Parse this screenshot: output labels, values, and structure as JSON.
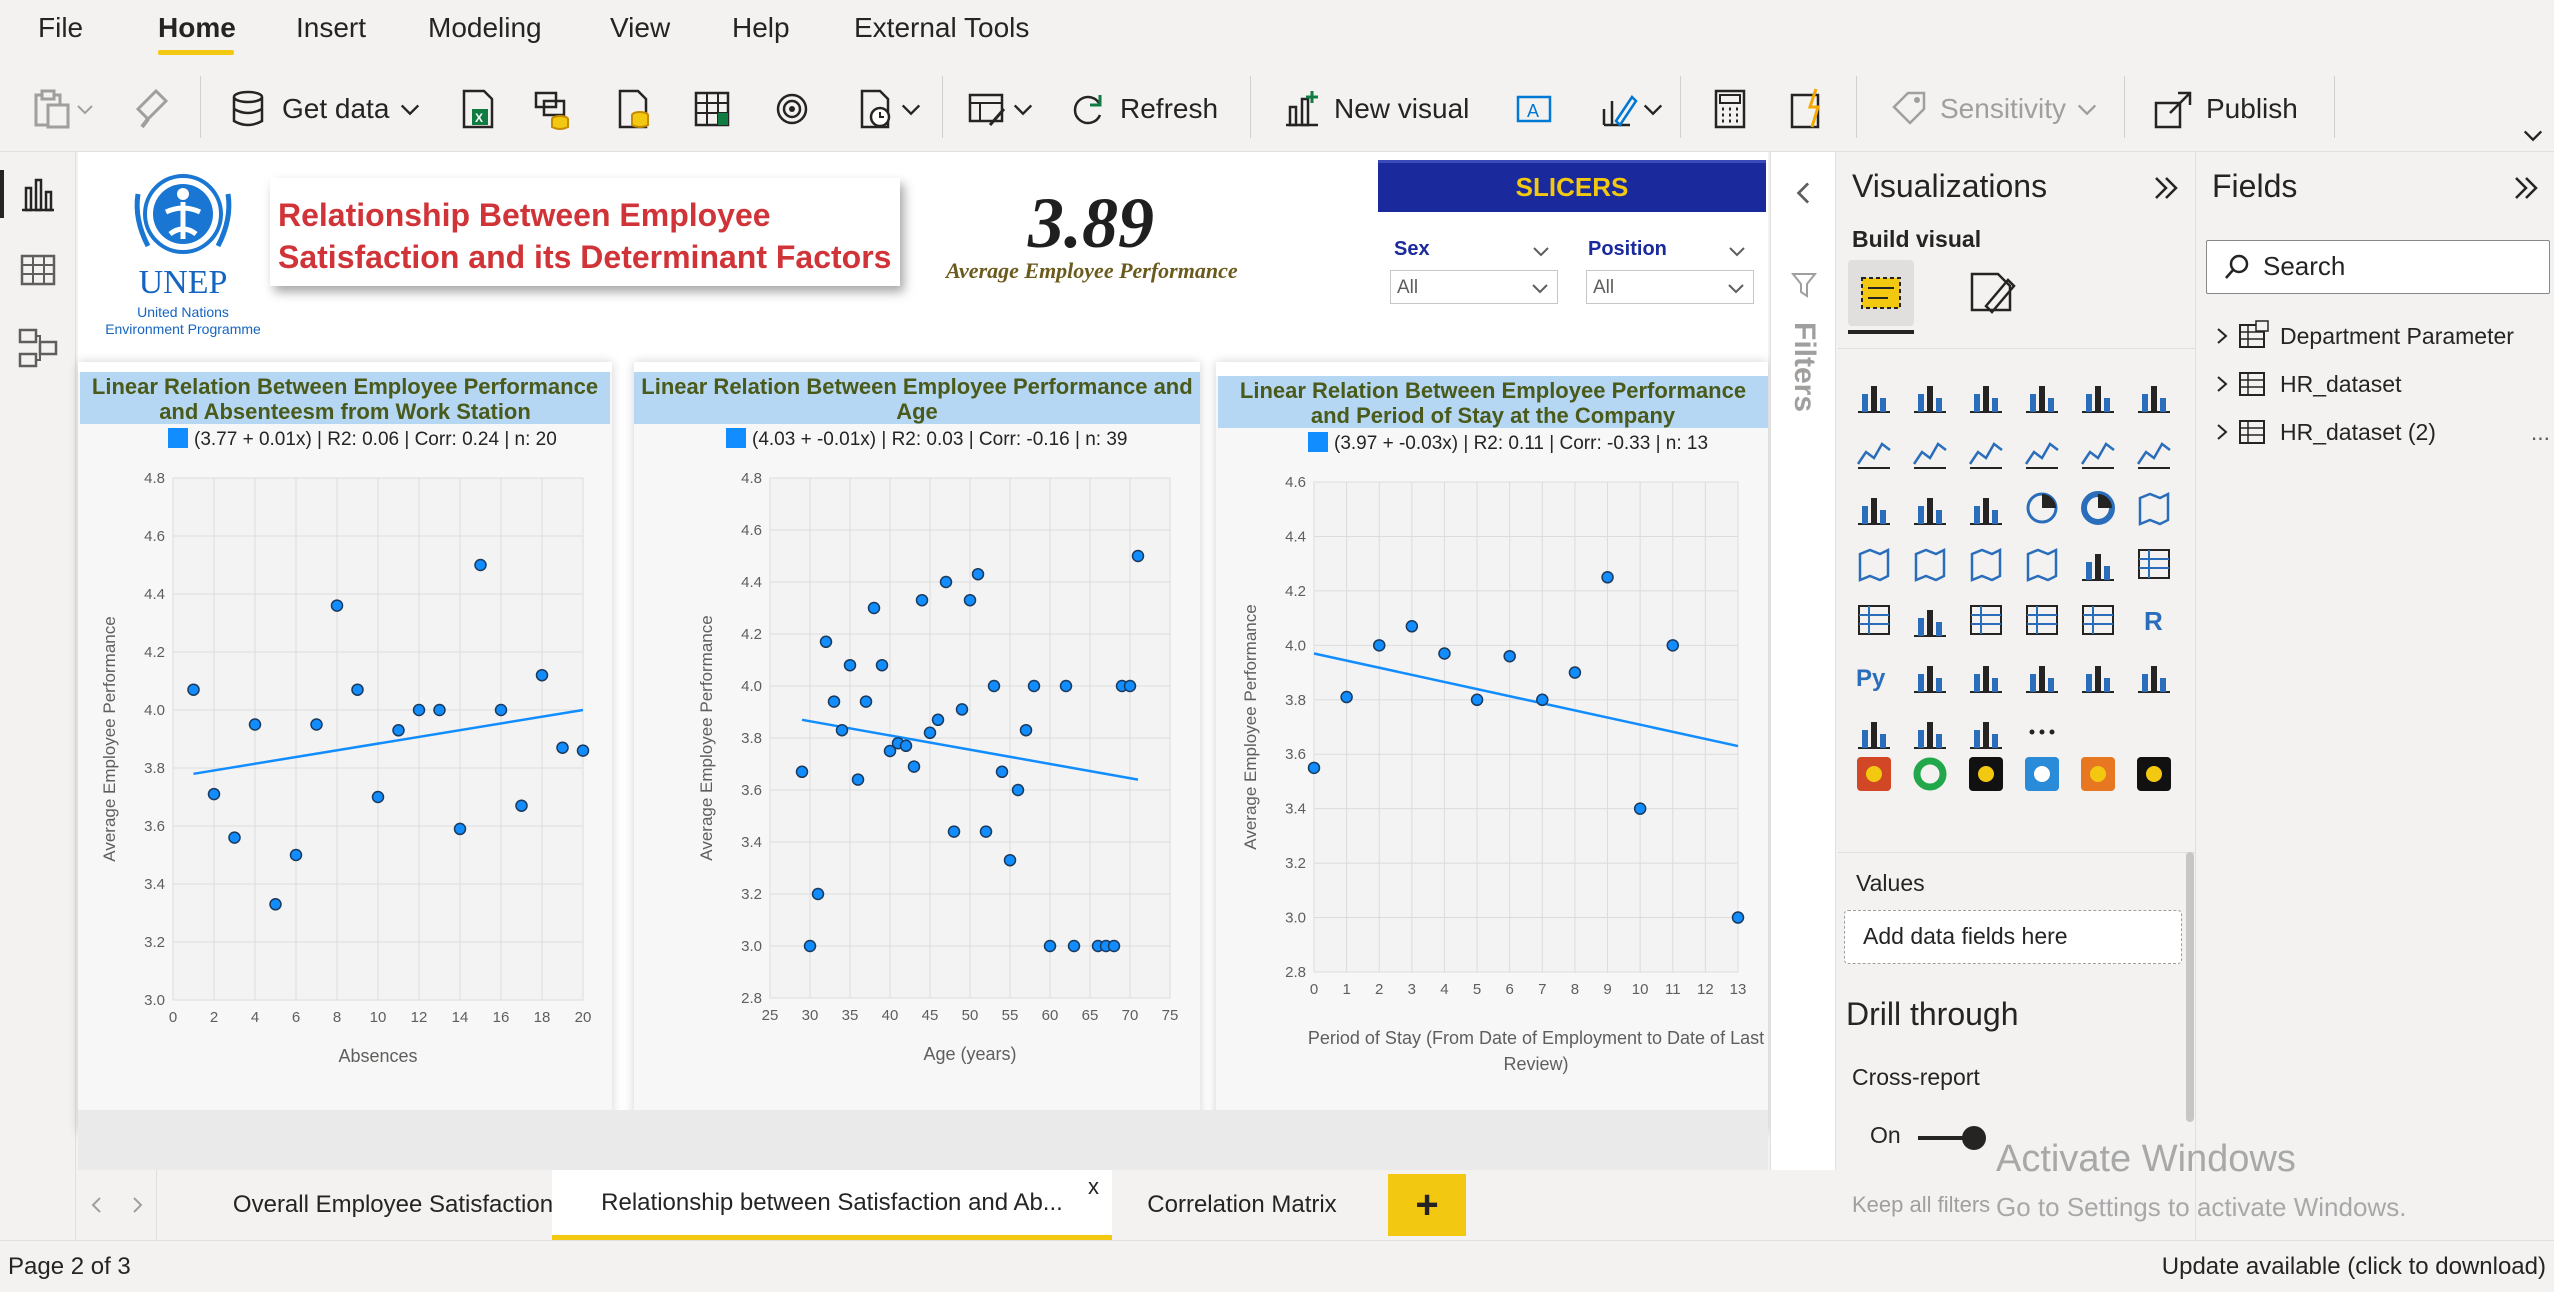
{
  "menu": {
    "items": [
      {
        "label": "File"
      },
      {
        "label": "Home"
      },
      {
        "label": "Insert"
      },
      {
        "label": "Modeling"
      },
      {
        "label": "View"
      },
      {
        "label": "Help"
      },
      {
        "label": "External Tools"
      }
    ],
    "active": "Home"
  },
  "ribbon": {
    "get_data": "Get data",
    "refresh": "Refresh",
    "new_visual": "New visual",
    "sensitivity": "Sensitivity",
    "publish": "Publish"
  },
  "report": {
    "logo_text": "UNEP",
    "logo_sub1": "United Nations",
    "logo_sub2": "Environment Programme",
    "title_line1": "Relationship Between Employee",
    "title_line2": "Satisfaction and its Determinant Factors",
    "kpi_value": "3.89",
    "kpi_label": "Average Employee Performance",
    "slicers_banner": "SLICERS",
    "slicer_sex_title": "Sex",
    "slicer_sex_value": "All",
    "slicer_position_title": "Position",
    "slicer_position_value": "All"
  },
  "chart_data": [
    {
      "type": "scatter",
      "title": "Linear Relation Between Employee Performance and Absenteesm from Work Station",
      "legend": "(3.77 + 0.01x) | R2: 0.06 | Corr: 0.24 | n: 20",
      "xlabel": "Absences",
      "ylabel": "Average Employee Performance",
      "xlim": [
        0,
        20
      ],
      "ylim": [
        3.0,
        4.8
      ],
      "xticks": [
        "0",
        "2",
        "4",
        "6",
        "8",
        "10",
        "12",
        "14",
        "16",
        "18",
        "20"
      ],
      "yticks": [
        "3.0",
        "3.2",
        "3.4",
        "3.6",
        "3.8",
        "4.0",
        "4.2",
        "4.4",
        "4.6",
        "4.8"
      ],
      "points": [
        [
          1,
          4.07
        ],
        [
          2,
          3.71
        ],
        [
          3,
          3.56
        ],
        [
          4,
          3.95
        ],
        [
          5,
          3.33
        ],
        [
          6,
          3.5
        ],
        [
          7,
          3.95
        ],
        [
          8,
          4.36
        ],
        [
          9,
          4.07
        ],
        [
          10,
          3.7
        ],
        [
          11,
          3.93
        ],
        [
          12,
          4.0
        ],
        [
          13,
          4.0
        ],
        [
          14,
          3.59
        ],
        [
          15,
          4.5
        ],
        [
          16,
          4.0
        ],
        [
          17,
          3.67
        ],
        [
          18,
          4.12
        ],
        [
          19,
          3.87
        ],
        [
          20,
          3.86
        ]
      ],
      "trend": [
        [
          1,
          3.78
        ],
        [
          20,
          4.0
        ]
      ],
      "color": "#118dff"
    },
    {
      "type": "scatter",
      "title": "Linear Relation Between Employee Performance and Age",
      "legend": "(4.03 + -0.01x) | R2: 0.03 | Corr: -0.16 | n: 39",
      "xlabel": "Age (years)",
      "ylabel": "Average Employee Performance",
      "xlim": [
        25,
        75
      ],
      "ylim": [
        2.8,
        4.8
      ],
      "xticks": [
        "25",
        "30",
        "35",
        "40",
        "45",
        "50",
        "55",
        "60",
        "65",
        "70",
        "75"
      ],
      "yticks": [
        "2.8",
        "3.0",
        "3.2",
        "3.4",
        "3.6",
        "3.8",
        "4.0",
        "4.2",
        "4.4",
        "4.6",
        "4.8"
      ],
      "points": [
        [
          29,
          3.67
        ],
        [
          30,
          3.0
        ],
        [
          31,
          3.2
        ],
        [
          32,
          4.17
        ],
        [
          33,
          3.94
        ],
        [
          34,
          3.83
        ],
        [
          35,
          4.08
        ],
        [
          36,
          3.64
        ],
        [
          37,
          3.94
        ],
        [
          38,
          4.3
        ],
        [
          39,
          4.08
        ],
        [
          40,
          3.75
        ],
        [
          41,
          3.78
        ],
        [
          42,
          3.77
        ],
        [
          43,
          3.69
        ],
        [
          44,
          4.33
        ],
        [
          45,
          3.82
        ],
        [
          46,
          3.87
        ],
        [
          47,
          4.4
        ],
        [
          48,
          3.44
        ],
        [
          49,
          3.91
        ],
        [
          50,
          4.33
        ],
        [
          51,
          4.43
        ],
        [
          52,
          3.44
        ],
        [
          53,
          4.0
        ],
        [
          54,
          3.67
        ],
        [
          55,
          3.33
        ],
        [
          56,
          3.6
        ],
        [
          57,
          3.83
        ],
        [
          58,
          4.0
        ],
        [
          60,
          3.0
        ],
        [
          62,
          4.0
        ],
        [
          63,
          3.0
        ],
        [
          66,
          3.0
        ],
        [
          67,
          3.0
        ],
        [
          68,
          3.0
        ],
        [
          69,
          4.0
        ],
        [
          70,
          4.0
        ],
        [
          71,
          4.5
        ]
      ],
      "trend": [
        [
          29,
          3.87
        ],
        [
          71,
          3.64
        ]
      ],
      "color": "#118dff"
    },
    {
      "type": "scatter",
      "title": "Linear Relation Between Employee Performance and Period of Stay at the Company",
      "legend": "(3.97 + -0.03x) | R2: 0.11 | Corr: -0.33 | n: 13",
      "xlabel": "Period of Stay (From Date of Employment to Date of Last Review)",
      "ylabel": "Average Employee Performance",
      "xlim": [
        0,
        13
      ],
      "ylim": [
        2.8,
        4.6
      ],
      "xticks": [
        "0",
        "1",
        "2",
        "3",
        "4",
        "5",
        "6",
        "7",
        "8",
        "9",
        "10",
        "11",
        "12",
        "13"
      ],
      "yticks": [
        "2.8",
        "3.0",
        "3.2",
        "3.4",
        "3.6",
        "3.8",
        "4.0",
        "4.2",
        "4.4",
        "4.6"
      ],
      "points": [
        [
          0,
          3.55
        ],
        [
          1,
          3.81
        ],
        [
          2,
          4.0
        ],
        [
          3,
          4.07
        ],
        [
          4,
          3.97
        ],
        [
          5,
          3.8
        ],
        [
          6,
          3.96
        ],
        [
          7,
          3.8
        ],
        [
          8,
          3.9
        ],
        [
          9,
          4.25
        ],
        [
          10,
          3.4
        ],
        [
          11,
          4.0
        ],
        [
          13,
          3.0
        ]
      ],
      "trend": [
        [
          0,
          3.97
        ],
        [
          13,
          3.63
        ]
      ],
      "color": "#118dff"
    }
  ],
  "filters_label": "Filters",
  "viz_pane": {
    "title": "Visualizations",
    "build_visual": "Build visual",
    "values_label": "Values",
    "add_fields": "Add data fields here",
    "drill_through": "Drill through",
    "cross_report": "Cross-report",
    "toggle_label": "On",
    "keep_filters": "Keep all filters",
    "icons": [
      "stacked-bar-icon",
      "stacked-column-icon",
      "clustered-bar-icon",
      "clustered-column-icon",
      "100-stacked-bar-icon",
      "100-stacked-column-icon",
      "line-chart-icon",
      "area-chart-icon",
      "stacked-area-icon",
      "line-column-icon",
      "line-clustered-column-icon",
      "ribbon-chart-icon",
      "waterfall-icon",
      "funnel-icon",
      "scatter-icon",
      "pie-icon",
      "donut-icon",
      "treemap-icon",
      "map-icon",
      "filled-map-icon",
      "shape-map-icon",
      "azure-map-icon",
      "gauge-icon",
      "card-icon",
      "multi-row-card-icon",
      "kpi-icon",
      "slicer-icon",
      "table-icon",
      "matrix-icon",
      "r-visual-icon",
      "python-visual-icon",
      "key-influencers-icon",
      "decomposition-tree-icon",
      "qna-icon",
      "smart-narrative-icon",
      "goals-icon",
      "paginated-report-icon",
      "power-apps-icon",
      "power-automate-icon",
      "more-visuals-icon"
    ]
  },
  "fields_pane": {
    "title": "Fields",
    "search_placeholder": "Search",
    "items": [
      {
        "label": "Department Parameter"
      },
      {
        "label": "HR_dataset"
      },
      {
        "label": "HR_dataset (2)"
      }
    ],
    "more": "..."
  },
  "tabs": {
    "items": [
      {
        "label": "Overall Employee Satisfaction"
      },
      {
        "label": "Relationship between Satisfaction and Ab..."
      },
      {
        "label": "Correlation Matrix"
      }
    ],
    "close": "x",
    "add": "+"
  },
  "status": {
    "page": "Page 2 of 3",
    "update": "Update available (click to download)"
  },
  "watermark": {
    "line1": "Activate Windows",
    "line2": "Go to Settings to activate Windows."
  }
}
